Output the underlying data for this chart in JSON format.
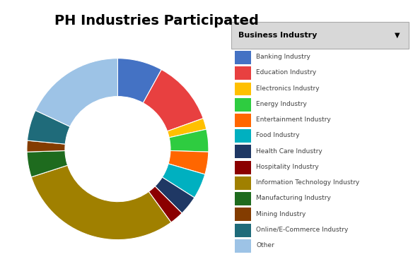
{
  "title": "PH Industries Participated",
  "labels": [
    "Banking Industry",
    "Education Industry",
    "Electronics Industry",
    "Energy Industry",
    "Entertainment Industry",
    "Food Industry",
    "Health Care Industry",
    "Hospitality Industry",
    "Information Technology Industry",
    "Manufacturing Industry",
    "Mining Industry",
    "Online/E-Commerce Industry",
    "Other"
  ],
  "values": [
    8.0,
    11.5,
    2.0,
    4.0,
    4.0,
    4.5,
    3.5,
    2.5,
    30.0,
    4.5,
    2.0,
    5.5,
    18.0
  ],
  "colors": [
    "#4472C4",
    "#E84040",
    "#FFC000",
    "#2ECC40",
    "#FF6600",
    "#00B0C0",
    "#1F3864",
    "#8B0000",
    "#A08000",
    "#1E6B1E",
    "#833C00",
    "#1F6B7A",
    "#9DC3E6"
  ],
  "legend_title": "Business Industry",
  "background_color": "#FFFFFF",
  "title_fontsize": 14,
  "donut_width": 0.42,
  "startangle": 90
}
